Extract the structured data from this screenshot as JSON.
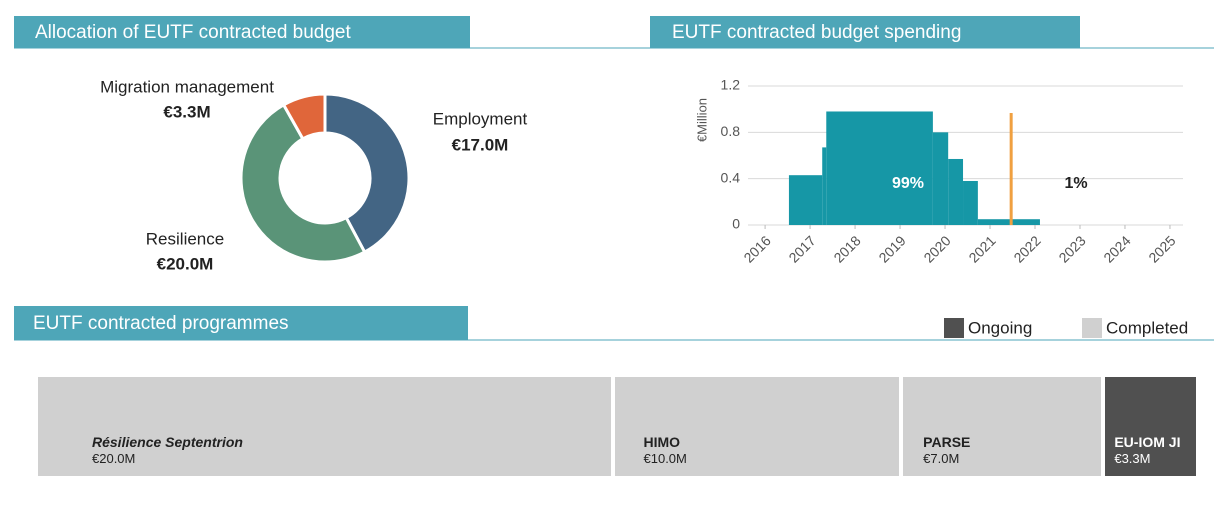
{
  "chart_data": [
    {
      "type": "pie",
      "title": "Allocation of EUTF contracted budget",
      "categories": [
        "Employment",
        "Resilience",
        "Migration management"
      ],
      "values": [
        17.0,
        20.0,
        3.3
      ],
      "value_labels": [
        "€17.0M",
        "€20.0M",
        "€3.3M"
      ],
      "colors": [
        "#436584",
        "#5a9478",
        "#e0663a"
      ],
      "donut": true
    },
    {
      "type": "histogram",
      "title": "EUTF contracted budget spending",
      "y_label": "€Million",
      "bins": [
        2016.53,
        2017.27,
        2017.36,
        2019.73,
        2020.07,
        2020.4,
        2020.73,
        2022.11
      ],
      "values": [
        0.43,
        0.67,
        0.98,
        0.8,
        0.57,
        0.38,
        0.05
      ],
      "color": "#1697a6",
      "marker_x": 2021.47,
      "marker_color": "#f0a040",
      "annotations": [
        "99%",
        "1%"
      ],
      "xlim": [
        2015.62,
        2025.29
      ],
      "xticks": [
        2016,
        2017,
        2018,
        2019,
        2020,
        2021,
        2022,
        2023,
        2024,
        2025
      ],
      "ylim": [
        0,
        1.2
      ],
      "yticks": [
        0,
        0.4,
        0.8,
        1.2
      ],
      "grid": true
    },
    {
      "type": "treemap",
      "title": "EUTF contracted programmes",
      "legend": [
        {
          "name": "Ongoing",
          "color": "#505050"
        },
        {
          "name": "Completed",
          "color": "#d0d0d0"
        }
      ],
      "names": [
        "Résilience Septentrion",
        "HIMO",
        "PARSE",
        "EU-IOM JI"
      ],
      "values": [
        20.0,
        10.0,
        7.0,
        3.3
      ],
      "value_labels": [
        "€20.0M",
        "€10.0M",
        "€7.0M",
        "€3.3M"
      ],
      "status": [
        "Completed",
        "Completed",
        "Completed",
        "Ongoing"
      ]
    }
  ]
}
